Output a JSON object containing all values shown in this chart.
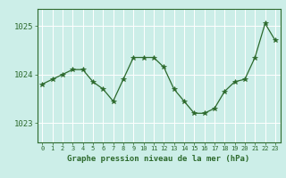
{
  "x": [
    0,
    1,
    2,
    3,
    4,
    5,
    6,
    7,
    8,
    9,
    10,
    11,
    12,
    13,
    14,
    15,
    16,
    17,
    18,
    19,
    20,
    21,
    22,
    23
  ],
  "y": [
    1023.8,
    1023.9,
    1024.0,
    1024.1,
    1024.1,
    1023.85,
    1023.7,
    1023.45,
    1023.9,
    1024.35,
    1024.35,
    1024.35,
    1024.15,
    1023.7,
    1023.45,
    1023.2,
    1023.2,
    1023.3,
    1023.65,
    1023.85,
    1023.9,
    1024.35,
    1025.05,
    1024.7
  ],
  "line_color": "#2d6a2d",
  "marker": "*",
  "marker_size": 4,
  "bg_color": "#cceee8",
  "grid_color": "#ffffff",
  "axis_color": "#2d6a2d",
  "tick_color": "#2d6a2d",
  "xlabel": "Graphe pression niveau de la mer (hPa)",
  "xlabel_color": "#2d6a2d",
  "ylim": [
    1022.6,
    1025.35
  ],
  "yticks": [
    1023,
    1024,
    1025
  ],
  "xticks": [
    0,
    1,
    2,
    3,
    4,
    5,
    6,
    7,
    8,
    9,
    10,
    11,
    12,
    13,
    14,
    15,
    16,
    17,
    18,
    19,
    20,
    21,
    22,
    23
  ]
}
